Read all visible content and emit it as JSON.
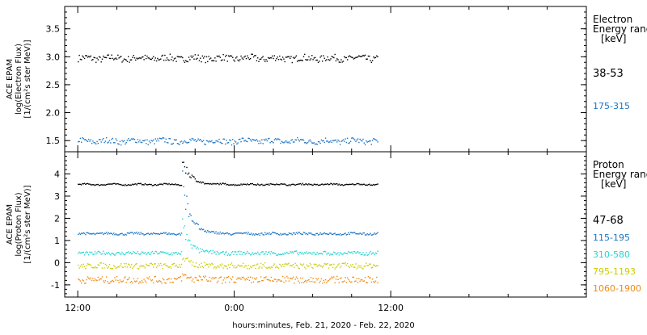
{
  "chart_data": [
    {
      "type": "scatter",
      "title": "",
      "ylabel": [
        "ACE EPAM",
        "log(Electron Flux)",
        "[1/(cm²s ster MeV)]"
      ],
      "yticks": [
        "1.5",
        "2.0",
        "2.5",
        "3.0",
        "3.5"
      ],
      "ylim": [
        1.3,
        3.9
      ],
      "legend_title": [
        "Electron",
        "Energy range",
        "[keV]"
      ],
      "series": [
        {
          "name": "38-53",
          "color": "#000000",
          "base": 2.98,
          "noise": 0.06,
          "peak": 0
        },
        {
          "name": "175-315",
          "color": "#1a74c4",
          "base": 1.5,
          "noise": 0.05,
          "peak": 0
        }
      ]
    },
    {
      "type": "scatter",
      "title": "",
      "ylabel": [
        "ACE EPAM",
        "log(Proton Flux)",
        "[1/(cm²s ster MeV)]"
      ],
      "yticks": [
        "-1",
        "0",
        "1",
        "2",
        "3",
        "4"
      ],
      "ylim": [
        -1.55,
        5.0
      ],
      "legend_title": [
        "Proton",
        "Energy range",
        "[keV]"
      ],
      "series": [
        {
          "name": "47-68",
          "color": "#000000",
          "base": 3.55,
          "noise": 0.03,
          "peak": 1.1
        },
        {
          "name": "115-195",
          "color": "#1a74c4",
          "base": 1.33,
          "noise": 0.05,
          "peak": 2.3
        },
        {
          "name": "310-580",
          "color": "#22d3d3",
          "base": 0.45,
          "noise": 0.08,
          "peak": 1.2
        },
        {
          "name": "795-1193",
          "color": "#cccc00",
          "base": -0.12,
          "noise": 0.12,
          "peak": 0.4
        },
        {
          "name": "1060-1900",
          "color": "#f08a10",
          "base": -0.75,
          "noise": 0.15,
          "peak": 0.2
        }
      ]
    }
  ],
  "x_axis": {
    "tick_labels": [
      "12:00",
      "0:00",
      "12:00"
    ],
    "xlabel": "hours:minutes, Feb. 21, 2020 - Feb. 22, 2020",
    "range_hours": [
      -1,
      39
    ],
    "major_ticks_hours": [
      0,
      12,
      24
    ],
    "minor_step_hours": 3,
    "data_end_hours": 23.0,
    "event_start_hours": 8.0
  }
}
